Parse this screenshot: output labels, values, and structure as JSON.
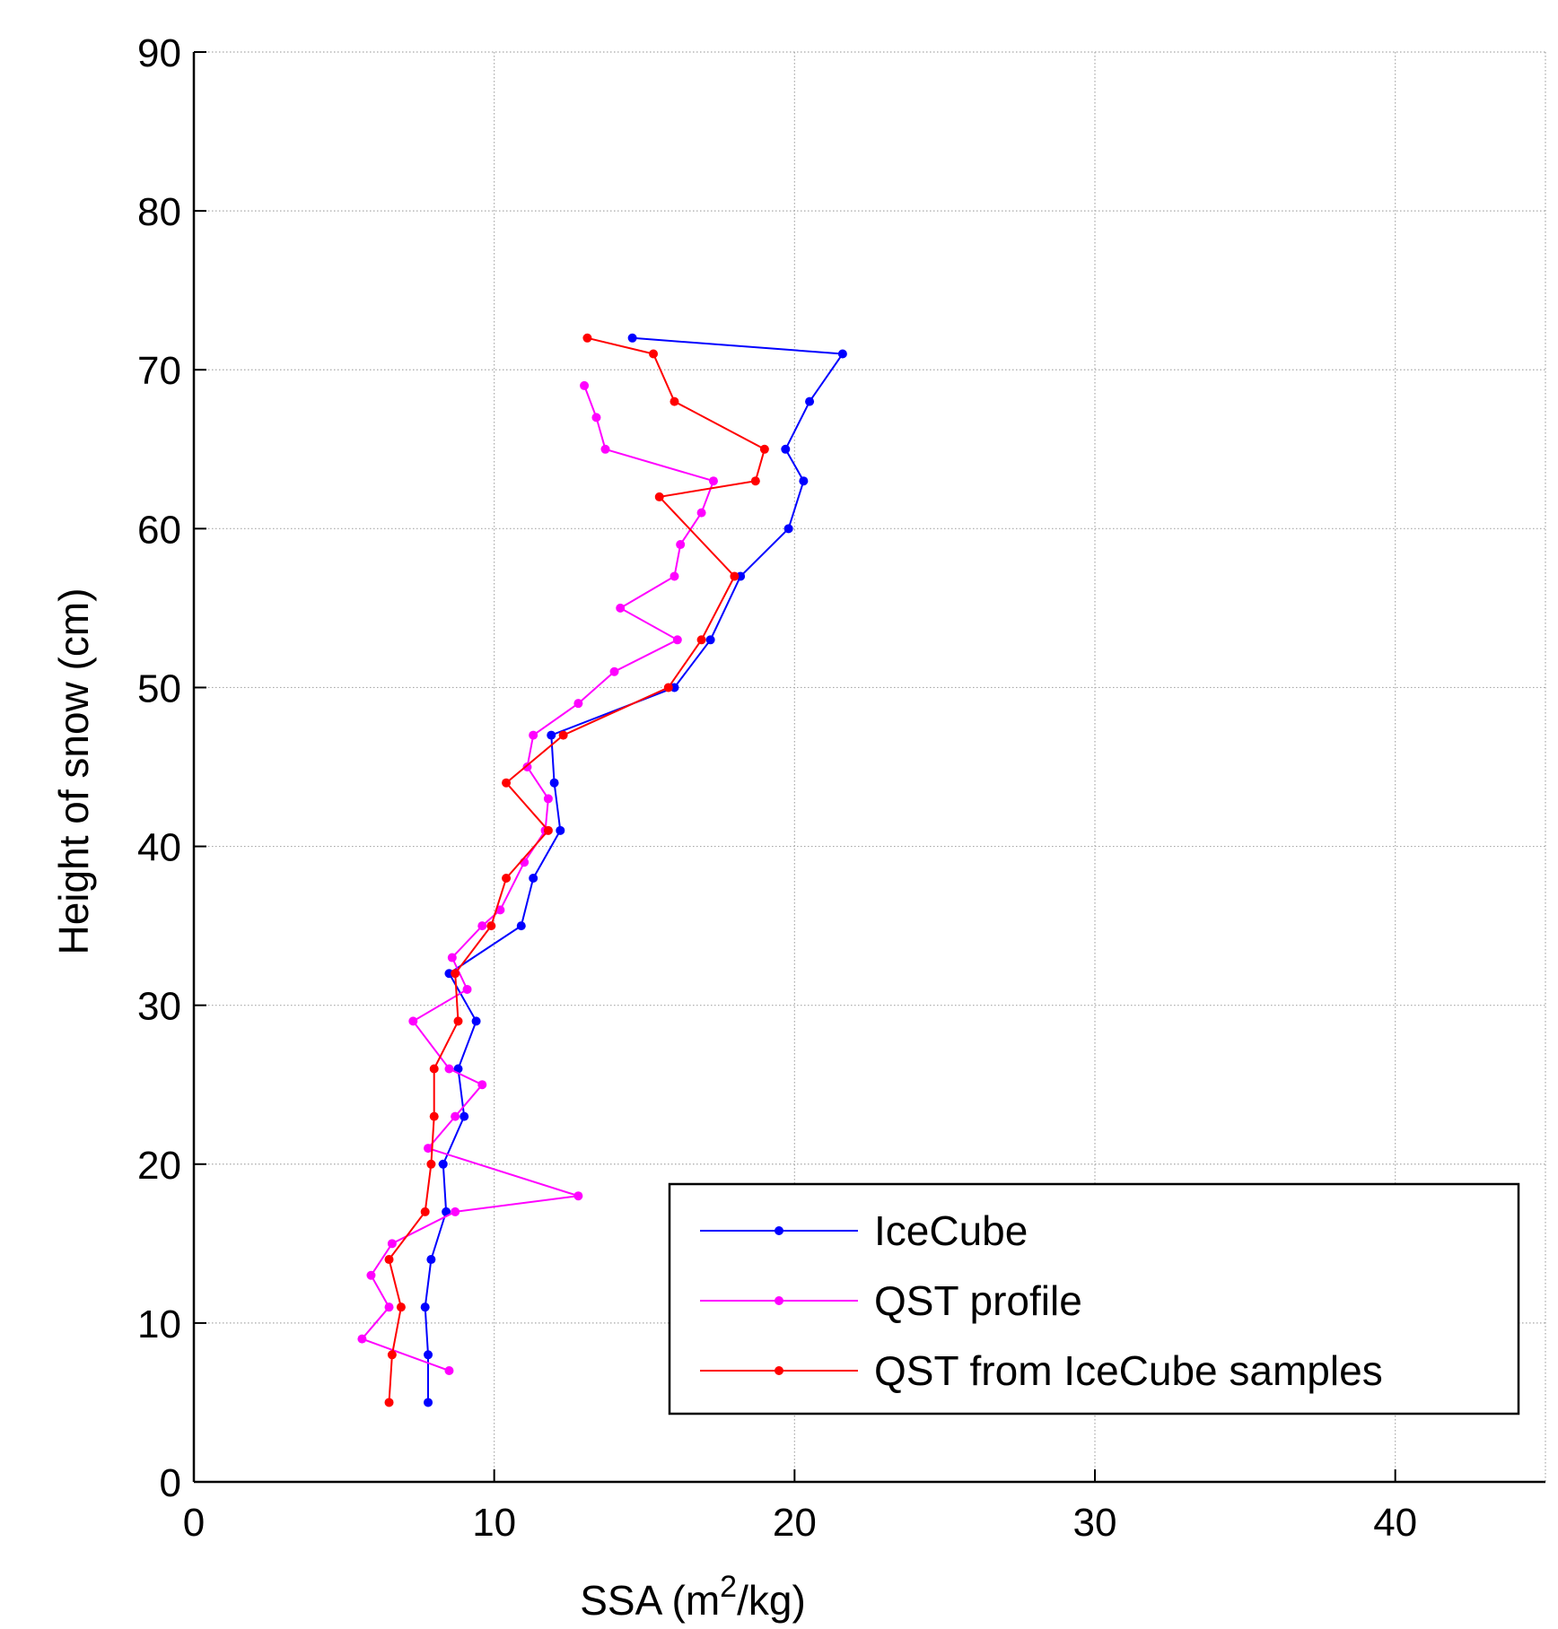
{
  "chart_data": {
    "type": "line",
    "xlabel": "SSA (m²/kg)",
    "xlabel_parts": {
      "prefix": "SSA (m",
      "sup": "2",
      "suffix": "/kg)"
    },
    "ylabel": "Height of snow (cm)",
    "xlim": [
      0,
      45
    ],
    "ylim": [
      0,
      90
    ],
    "x_ticks": [
      0,
      10,
      20,
      30,
      40
    ],
    "y_ticks": [
      0,
      10,
      20,
      30,
      40,
      50,
      60,
      70,
      80,
      90
    ],
    "x_tick_labels": [
      "0",
      "10",
      "20",
      "30",
      "40"
    ],
    "y_tick_labels": [
      "0",
      "10",
      "20",
      "30",
      "40",
      "50",
      "60",
      "70",
      "80",
      "90"
    ],
    "grid": true,
    "legend_position": "bottom-right",
    "series": [
      {
        "name": "IceCube",
        "color": "#0000ff",
        "points": [
          [
            14.6,
            72
          ],
          [
            21.6,
            71
          ],
          [
            20.5,
            68
          ],
          [
            19.7,
            65
          ],
          [
            20.3,
            63
          ],
          [
            19.8,
            60
          ],
          [
            18.2,
            57
          ],
          [
            17.2,
            53
          ],
          [
            16.0,
            50
          ],
          [
            11.9,
            47
          ],
          [
            12.0,
            44
          ],
          [
            12.2,
            41
          ],
          [
            11.3,
            38
          ],
          [
            10.9,
            35
          ],
          [
            8.5,
            32
          ],
          [
            9.4,
            29
          ],
          [
            8.8,
            26
          ],
          [
            9.0,
            23
          ],
          [
            8.3,
            20
          ],
          [
            8.4,
            17
          ],
          [
            7.9,
            14
          ],
          [
            7.7,
            11
          ],
          [
            7.8,
            8
          ],
          [
            7.8,
            5
          ]
        ]
      },
      {
        "name": "QST profile",
        "color": "#ff00ff",
        "points": [
          [
            13.0,
            69
          ],
          [
            13.4,
            67
          ],
          [
            13.7,
            65
          ],
          [
            17.3,
            63
          ],
          [
            16.9,
            61
          ],
          [
            16.2,
            59
          ],
          [
            16.0,
            57
          ],
          [
            14.2,
            55
          ],
          [
            16.1,
            53
          ],
          [
            14.0,
            51
          ],
          [
            12.8,
            49
          ],
          [
            11.3,
            47
          ],
          [
            11.1,
            45
          ],
          [
            11.8,
            43
          ],
          [
            11.7,
            41
          ],
          [
            11.0,
            39
          ],
          [
            10.2,
            36
          ],
          [
            9.6,
            35
          ],
          [
            8.6,
            33
          ],
          [
            9.1,
            31
          ],
          [
            7.3,
            29
          ],
          [
            8.5,
            26
          ],
          [
            9.6,
            25
          ],
          [
            8.7,
            23
          ],
          [
            7.8,
            21
          ],
          [
            12.8,
            18
          ],
          [
            8.7,
            17
          ],
          [
            6.6,
            15
          ],
          [
            5.9,
            13
          ],
          [
            6.5,
            11
          ],
          [
            5.6,
            9
          ],
          [
            8.5,
            7
          ]
        ]
      },
      {
        "name": "QST from IceCube samples",
        "color": "#ff0000",
        "points": [
          [
            13.1,
            72
          ],
          [
            15.3,
            71
          ],
          [
            16.0,
            68
          ],
          [
            19.0,
            65
          ],
          [
            18.7,
            63
          ],
          [
            15.5,
            62
          ],
          [
            18.0,
            57
          ],
          [
            16.9,
            53
          ],
          [
            15.8,
            50
          ],
          [
            12.3,
            47
          ],
          [
            10.4,
            44
          ],
          [
            11.8,
            41
          ],
          [
            10.4,
            38
          ],
          [
            9.9,
            35
          ],
          [
            8.7,
            32
          ],
          [
            8.8,
            29
          ],
          [
            8.0,
            26
          ],
          [
            8.0,
            23
          ],
          [
            7.9,
            20
          ],
          [
            7.7,
            17
          ],
          [
            6.5,
            14
          ],
          [
            6.9,
            11
          ],
          [
            6.6,
            8
          ],
          [
            6.5,
            5
          ]
        ]
      }
    ]
  }
}
